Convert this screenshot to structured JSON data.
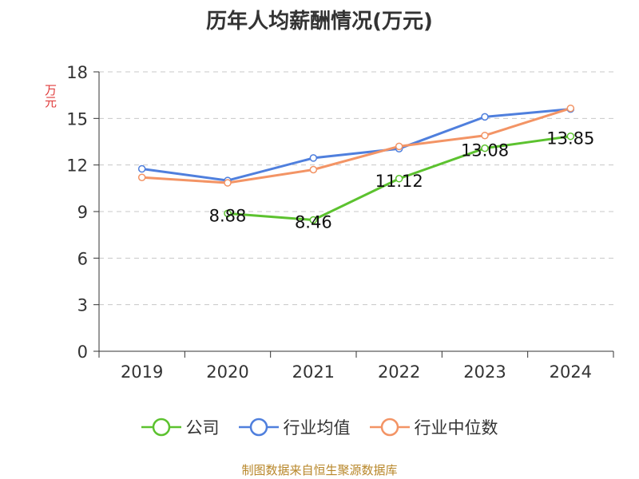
{
  "chart_data": {
    "type": "line",
    "title": "历年人均薪酬情况(万元)",
    "ylabel": "万元",
    "xlabel": "",
    "categories": [
      "2019",
      "2020",
      "2021",
      "2022",
      "2023",
      "2024"
    ],
    "ylim": [
      0,
      18
    ],
    "yticks": [
      "0",
      "3",
      "6",
      "9",
      "12",
      "15",
      "18"
    ],
    "grid": true,
    "legend_position": "bottom",
    "series": [
      {
        "name": "公司",
        "color": "#5cc22f",
        "values": [
          null,
          8.88,
          8.46,
          11.12,
          13.08,
          13.85
        ],
        "labels": [
          null,
          "8.88",
          "8.46",
          "11.12",
          "13.08",
          "13.85"
        ]
      },
      {
        "name": "行业均值",
        "color": "#4f7fdd",
        "values": [
          11.75,
          11.0,
          12.45,
          13.05,
          15.1,
          15.6
        ]
      },
      {
        "name": "行业中位数",
        "color": "#f39465",
        "values": [
          11.2,
          10.85,
          11.7,
          13.2,
          13.9,
          15.65
        ]
      }
    ]
  },
  "source": "制图数据来自恒生聚源数据库"
}
